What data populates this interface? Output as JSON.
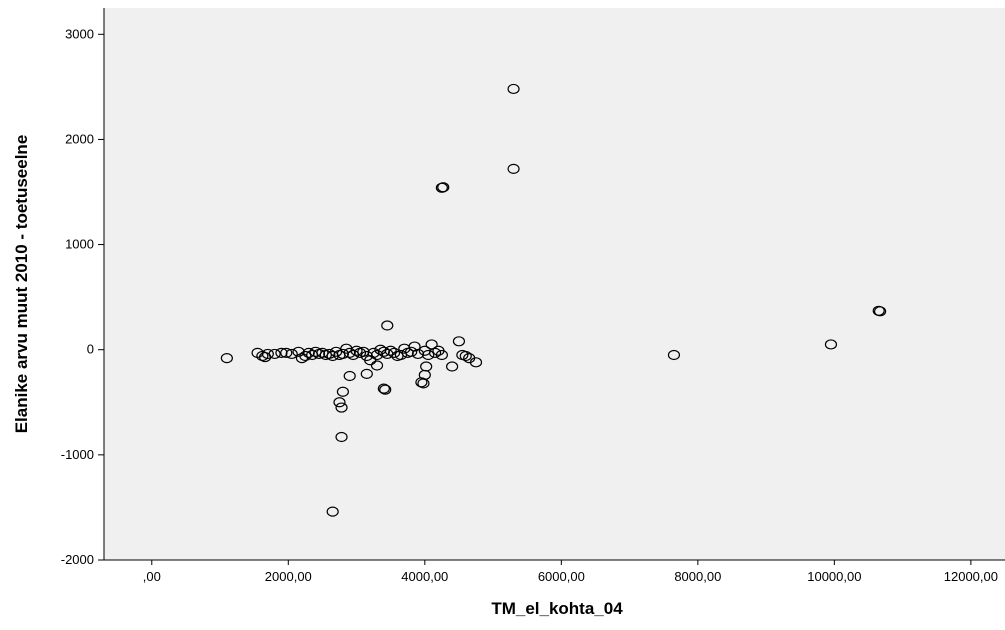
{
  "chart_data": {
    "type": "scatter",
    "title": "",
    "xlabel": "TM_el_kohta_04",
    "ylabel": "Elanike arvu muut 2010 - toetuseelne",
    "xlim": [
      -700,
      12500
    ],
    "ylim": [
      -2000,
      3250
    ],
    "x_ticks": [
      0,
      2000,
      4000,
      6000,
      8000,
      10000,
      12000
    ],
    "x_tick_labels": [
      ",00",
      "2000,00",
      "4000,00",
      "6000,00",
      "8000,00",
      "10000,00",
      "12000,00"
    ],
    "y_ticks": [
      -2000,
      -1000,
      0,
      1000,
      2000,
      3000
    ],
    "y_tick_labels": [
      "-2000",
      "-1000",
      "0",
      "1000",
      "2000",
      "3000"
    ],
    "grid": false,
    "legend": "none",
    "colors": {
      "plot_background": "#f0f0f0",
      "marker_stroke": "#000000",
      "page_background": "#ffffff"
    },
    "points": [
      [
        1100,
        -80
      ],
      [
        1550,
        -30
      ],
      [
        1620,
        -60
      ],
      [
        1660,
        -70
      ],
      [
        1700,
        -40
      ],
      [
        1800,
        -40
      ],
      [
        1900,
        -30
      ],
      [
        1970,
        -30
      ],
      [
        2050,
        -40
      ],
      [
        2150,
        -20
      ],
      [
        2200,
        -80
      ],
      [
        2250,
        -60
      ],
      [
        2300,
        -30
      ],
      [
        2350,
        -50
      ],
      [
        2400,
        -20
      ],
      [
        2450,
        -40
      ],
      [
        2500,
        -30
      ],
      [
        2550,
        -50
      ],
      [
        2600,
        -40
      ],
      [
        2650,
        -60
      ],
      [
        2700,
        -20
      ],
      [
        2750,
        -50
      ],
      [
        2800,
        -40
      ],
      [
        2850,
        10
      ],
      [
        2900,
        -30
      ],
      [
        2950,
        -50
      ],
      [
        3000,
        -10
      ],
      [
        3050,
        -30
      ],
      [
        3100,
        -20
      ],
      [
        3150,
        -60
      ],
      [
        3200,
        -100
      ],
      [
        3250,
        -30
      ],
      [
        3300,
        -50
      ],
      [
        3350,
        0
      ],
      [
        3400,
        -20
      ],
      [
        3450,
        -40
      ],
      [
        3500,
        -10
      ],
      [
        3550,
        -30
      ],
      [
        3600,
        -60
      ],
      [
        3650,
        -50
      ],
      [
        3700,
        10
      ],
      [
        3750,
        -30
      ],
      [
        3800,
        -20
      ],
      [
        3850,
        30
      ],
      [
        3900,
        -40
      ],
      [
        4000,
        -10
      ],
      [
        4050,
        -50
      ],
      [
        4100,
        50
      ],
      [
        4150,
        -30
      ],
      [
        4200,
        -10
      ],
      [
        4250,
        -50
      ],
      [
        4400,
        -160
      ],
      [
        4500,
        80
      ],
      [
        4550,
        -50
      ],
      [
        4600,
        -60
      ],
      [
        4650,
        -80
      ],
      [
        4750,
        -120
      ],
      [
        3450,
        230
      ],
      [
        3400,
        -370
      ],
      [
        3420,
        -380
      ],
      [
        3300,
        -150
      ],
      [
        3150,
        -230
      ],
      [
        2900,
        -250
      ],
      [
        2800,
        -400
      ],
      [
        2750,
        -500
      ],
      [
        2780,
        -550
      ],
      [
        2780,
        -830
      ],
      [
        2650,
        -1540
      ],
      [
        3950,
        -310
      ],
      [
        3980,
        -320
      ],
      [
        4000,
        -240
      ],
      [
        4020,
        -160
      ],
      [
        4250,
        1540
      ],
      [
        4270,
        1545
      ],
      [
        5300,
        1720
      ],
      [
        5300,
        2480
      ],
      [
        7650,
        -50
      ],
      [
        9950,
        50
      ],
      [
        10650,
        370
      ],
      [
        10670,
        365
      ]
    ]
  }
}
